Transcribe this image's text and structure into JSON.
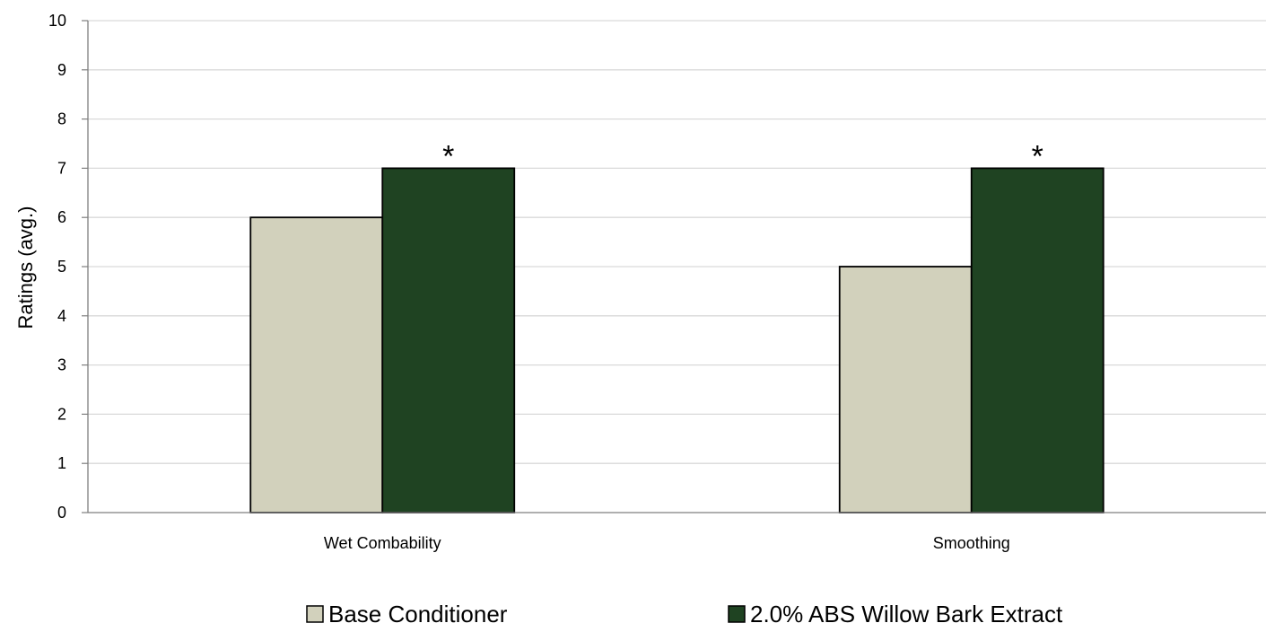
{
  "chart_data": {
    "type": "bar",
    "categories": [
      "Wet Combability",
      "Smoothing"
    ],
    "series": [
      {
        "name": "Base Conditioner",
        "values": [
          6,
          5
        ],
        "color": "#d2d1bc"
      },
      {
        "name": "2.0% ABS Willow Bark Extract",
        "values": [
          7,
          7
        ],
        "color": "#1f4322"
      }
    ],
    "annotations": [
      {
        "category": "Wet Combability",
        "series": "2.0% ABS Willow Bark Extract",
        "text": "*"
      },
      {
        "category": "Smoothing",
        "series": "2.0% ABS Willow Bark Extract",
        "text": "*"
      }
    ],
    "xlabel": "",
    "ylabel": "Ratings (avg.)",
    "ylim": [
      0,
      10
    ],
    "yticks": [
      "0",
      "1",
      "2",
      "3",
      "4",
      "5",
      "6",
      "7",
      "8",
      "9",
      "10"
    ],
    "grid": true,
    "legend_position": "bottom"
  }
}
